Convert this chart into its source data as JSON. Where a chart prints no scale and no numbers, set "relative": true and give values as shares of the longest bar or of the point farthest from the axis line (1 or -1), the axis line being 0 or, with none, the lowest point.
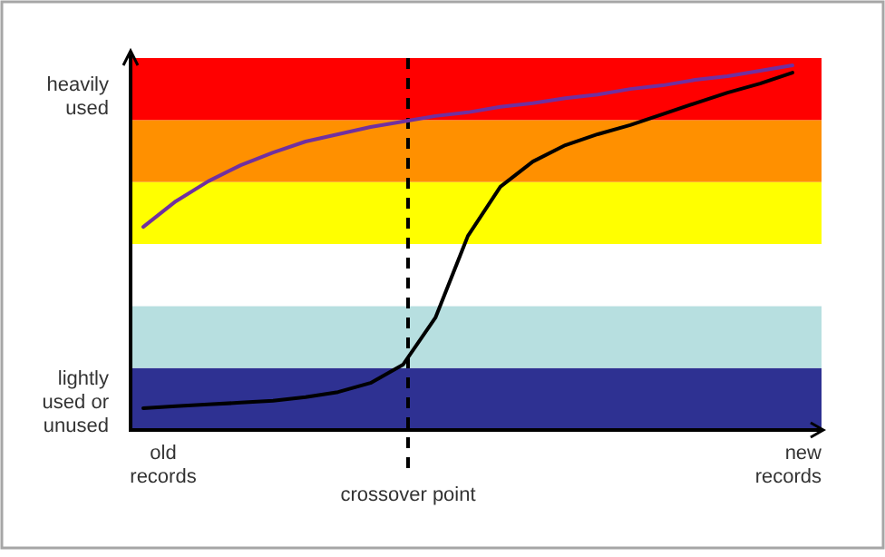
{
  "chart_data": {
    "type": "line",
    "relative": true,
    "line_style": "solid",
    "marker": "none",
    "categories": [
      null,
      null,
      null,
      null,
      null,
      null,
      null,
      null,
      null,
      null,
      null,
      null,
      null,
      null,
      null,
      null,
      null,
      null,
      null,
      null,
      null
    ],
    "series": [
      {
        "color": "#7030a0",
        "values": [
          0.557,
          0.627,
          0.682,
          0.726,
          0.761,
          0.791,
          0.811,
          0.831,
          0.846,
          0.861,
          0.871,
          0.886,
          0.896,
          0.91,
          0.92,
          0.935,
          0.945,
          0.96,
          0.97,
          0.985,
          1
        ]
      },
      {
        "color": "#000000",
        "values": [
          0.06,
          0.065,
          0.07,
          0.075,
          0.08,
          0.09,
          0.104,
          0.129,
          0.179,
          0.308,
          0.532,
          0.667,
          0.736,
          0.781,
          0.811,
          0.836,
          0.866,
          0.896,
          0.925,
          0.95,
          0.98
        ]
      }
    ],
    "bands": [
      {
        "axis": "y",
        "from": 0,
        "to": 0.17,
        "color": "#2e3192"
      },
      {
        "axis": "y",
        "from": 0.17,
        "to": 0.34,
        "color": "#b7dfe0"
      },
      {
        "axis": "y",
        "from": 0.34,
        "to": 0.51,
        "color": "#ffffff"
      },
      {
        "axis": "y",
        "from": 0.51,
        "to": 0.68,
        "color": "#ffff00"
      },
      {
        "axis": "y",
        "from": 0.68,
        "to": 0.85,
        "color": "#ff9000"
      },
      {
        "axis": "y",
        "from": 0.85,
        "to": 1.02,
        "color": "#ff0000"
      }
    ],
    "annotations": [
      "heavily used",
      "lightly used or unused",
      "old records",
      "new records",
      "crossover point"
    ]
  }
}
